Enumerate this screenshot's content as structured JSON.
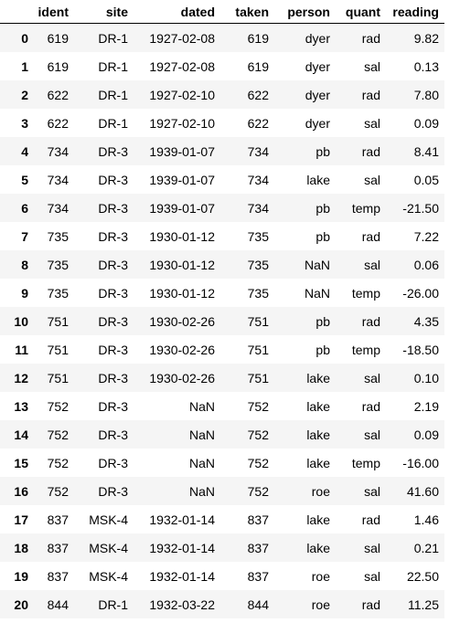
{
  "table": {
    "index_header": "",
    "columns": [
      "ident",
      "site",
      "dated",
      "taken",
      "person",
      "quant",
      "reading"
    ],
    "rows": [
      {
        "index": "0",
        "cells": [
          "619",
          "DR-1",
          "1927-02-08",
          "619",
          "dyer",
          "rad",
          "9.82"
        ]
      },
      {
        "index": "1",
        "cells": [
          "619",
          "DR-1",
          "1927-02-08",
          "619",
          "dyer",
          "sal",
          "0.13"
        ]
      },
      {
        "index": "2",
        "cells": [
          "622",
          "DR-1",
          "1927-02-10",
          "622",
          "dyer",
          "rad",
          "7.80"
        ]
      },
      {
        "index": "3",
        "cells": [
          "622",
          "DR-1",
          "1927-02-10",
          "622",
          "dyer",
          "sal",
          "0.09"
        ]
      },
      {
        "index": "4",
        "cells": [
          "734",
          "DR-3",
          "1939-01-07",
          "734",
          "pb",
          "rad",
          "8.41"
        ]
      },
      {
        "index": "5",
        "cells": [
          "734",
          "DR-3",
          "1939-01-07",
          "734",
          "lake",
          "sal",
          "0.05"
        ]
      },
      {
        "index": "6",
        "cells": [
          "734",
          "DR-3",
          "1939-01-07",
          "734",
          "pb",
          "temp",
          "-21.50"
        ]
      },
      {
        "index": "7",
        "cells": [
          "735",
          "DR-3",
          "1930-01-12",
          "735",
          "pb",
          "rad",
          "7.22"
        ]
      },
      {
        "index": "8",
        "cells": [
          "735",
          "DR-3",
          "1930-01-12",
          "735",
          "NaN",
          "sal",
          "0.06"
        ]
      },
      {
        "index": "9",
        "cells": [
          "735",
          "DR-3",
          "1930-01-12",
          "735",
          "NaN",
          "temp",
          "-26.00"
        ]
      },
      {
        "index": "10",
        "cells": [
          "751",
          "DR-3",
          "1930-02-26",
          "751",
          "pb",
          "rad",
          "4.35"
        ]
      },
      {
        "index": "11",
        "cells": [
          "751",
          "DR-3",
          "1930-02-26",
          "751",
          "pb",
          "temp",
          "-18.50"
        ]
      },
      {
        "index": "12",
        "cells": [
          "751",
          "DR-3",
          "1930-02-26",
          "751",
          "lake",
          "sal",
          "0.10"
        ]
      },
      {
        "index": "13",
        "cells": [
          "752",
          "DR-3",
          "NaN",
          "752",
          "lake",
          "rad",
          "2.19"
        ]
      },
      {
        "index": "14",
        "cells": [
          "752",
          "DR-3",
          "NaN",
          "752",
          "lake",
          "sal",
          "0.09"
        ]
      },
      {
        "index": "15",
        "cells": [
          "752",
          "DR-3",
          "NaN",
          "752",
          "lake",
          "temp",
          "-16.00"
        ]
      },
      {
        "index": "16",
        "cells": [
          "752",
          "DR-3",
          "NaN",
          "752",
          "roe",
          "sal",
          "41.60"
        ]
      },
      {
        "index": "17",
        "cells": [
          "837",
          "MSK-4",
          "1932-01-14",
          "837",
          "lake",
          "rad",
          "1.46"
        ]
      },
      {
        "index": "18",
        "cells": [
          "837",
          "MSK-4",
          "1932-01-14",
          "837",
          "lake",
          "sal",
          "0.21"
        ]
      },
      {
        "index": "19",
        "cells": [
          "837",
          "MSK-4",
          "1932-01-14",
          "837",
          "roe",
          "sal",
          "22.50"
        ]
      },
      {
        "index": "20",
        "cells": [
          "844",
          "DR-1",
          "1932-03-22",
          "844",
          "roe",
          "rad",
          "11.25"
        ]
      }
    ]
  }
}
